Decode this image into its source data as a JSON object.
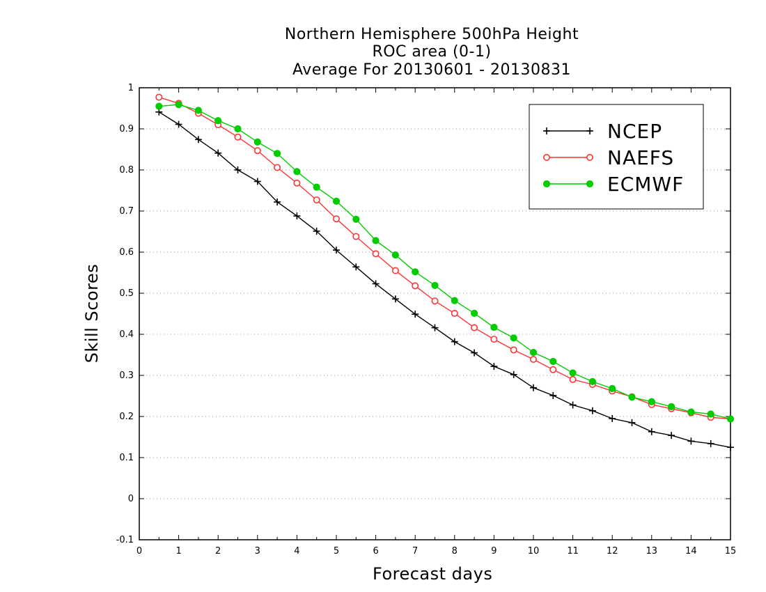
{
  "chart_data": {
    "type": "line",
    "title": [
      "Northern Hemisphere 500hPa Height",
      "ROC area (0-1)",
      "Average For 20130601 - 20130831"
    ],
    "xlabel": "Forecast days",
    "ylabel": "Skill Scores",
    "xlim": [
      0,
      15
    ],
    "ylim": [
      -0.1,
      1
    ],
    "xticks": [
      "0",
      "1",
      "2",
      "3",
      "4",
      "5",
      "6",
      "7",
      "8",
      "9",
      "10",
      "11",
      "12",
      "13",
      "14",
      "15"
    ],
    "yticks": [
      "-0.1",
      "0",
      "0.1",
      "0.2",
      "0.3",
      "0.4",
      "0.5",
      "0.6",
      "0.7",
      "0.8",
      "0.9",
      "1"
    ],
    "grid": true,
    "legend_position": "top-right",
    "x": [
      0.5,
      1,
      1.5,
      2,
      2.5,
      3,
      3.5,
      4,
      4.5,
      5,
      5.5,
      6,
      6.5,
      7,
      7.5,
      8,
      8.5,
      9,
      9.5,
      10,
      10.5,
      11,
      11.5,
      12,
      12.5,
      13,
      13.5,
      14,
      14.5,
      15
    ],
    "series": [
      {
        "name": "NCEP",
        "color": "#000000",
        "marker": "plus",
        "values": [
          0.941,
          0.911,
          0.874,
          0.841,
          0.8,
          0.772,
          0.722,
          0.688,
          0.651,
          0.605,
          0.564,
          0.523,
          0.486,
          0.449,
          0.416,
          0.382,
          0.355,
          0.322,
          0.302,
          0.27,
          0.251,
          0.228,
          0.214,
          0.195,
          0.185,
          0.163,
          0.154,
          0.14,
          0.134,
          0.125
        ]
      },
      {
        "name": "NAEFS",
        "color": "#ff3333",
        "marker": "open-circle",
        "values": [
          0.977,
          0.962,
          0.938,
          0.91,
          0.88,
          0.847,
          0.806,
          0.768,
          0.727,
          0.681,
          0.638,
          0.596,
          0.555,
          0.518,
          0.481,
          0.451,
          0.416,
          0.388,
          0.362,
          0.339,
          0.314,
          0.29,
          0.278,
          0.262,
          0.248,
          0.229,
          0.219,
          0.209,
          0.198,
          0.194
        ]
      },
      {
        "name": "ECMWF",
        "color": "#00cc00",
        "marker": "filled-circle",
        "values": [
          0.955,
          0.959,
          0.945,
          0.92,
          0.9,
          0.868,
          0.84,
          0.796,
          0.758,
          0.724,
          0.68,
          0.628,
          0.593,
          0.552,
          0.519,
          0.482,
          0.451,
          0.417,
          0.391,
          0.356,
          0.334,
          0.306,
          0.285,
          0.268,
          0.247,
          0.236,
          0.224,
          0.211,
          0.206,
          0.194
        ]
      }
    ]
  }
}
